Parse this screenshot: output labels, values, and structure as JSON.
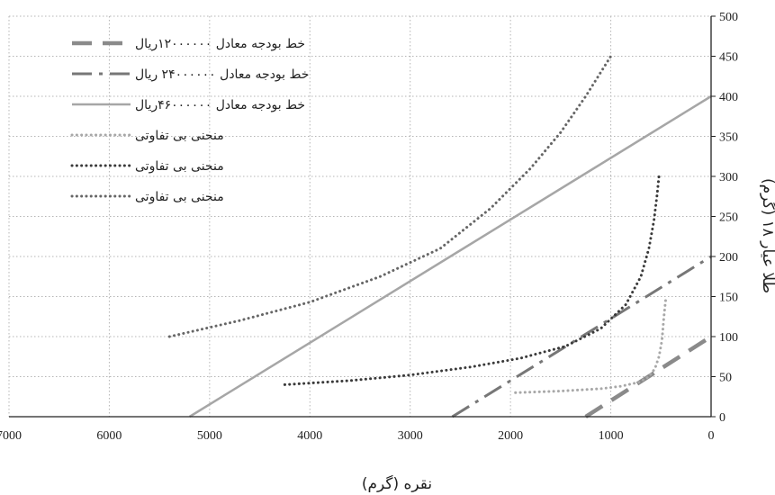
{
  "chart_data": {
    "type": "line",
    "xlabel": "نقره (گرم)",
    "ylabel": "طلا عیار ۱۸ (گرم)",
    "xlim": [
      7000,
      0
    ],
    "ylim": [
      0,
      500
    ],
    "x_reversed": true,
    "y_axis_side": "right",
    "grid": true,
    "legend_position": "top-left",
    "x_ticks": [
      "7000",
      "6000",
      "5000",
      "4000",
      "3000",
      "2000",
      "1000",
      "0"
    ],
    "y_ticks": [
      "0",
      "50",
      "100",
      "150",
      "200",
      "250",
      "300",
      "350",
      "400",
      "450",
      "500"
    ],
    "series": [
      {
        "name": "خط بودجه معادل ۱۲۰۰۰۰۰۰ریال",
        "style": "dashed-thick",
        "color": "#8a8a8a",
        "x": [
          1250,
          0
        ],
        "y": [
          0,
          100
        ]
      },
      {
        "name": "خط بودجه معادل ۲۴۰۰۰۰۰۰ ریال",
        "style": "dash-dot",
        "color": "#777777",
        "x": [
          2580,
          0
        ],
        "y": [
          0,
          200
        ]
      },
      {
        "name": "خط بودجه معادل ۴۶۰۰۰۰۰۰ریال",
        "style": "solid",
        "color": "#a6a6a6",
        "x": [
          5200,
          0
        ],
        "y": [
          0,
          400
        ]
      },
      {
        "name": "منحنی بی تفاوتی",
        "style": "dotted",
        "color": "#a8a8a8",
        "x": [
          1950,
          1500,
          1100,
          900,
          720,
          620,
          560,
          520,
          490,
          470,
          450
        ],
        "y": [
          30,
          32,
          35,
          38,
          43,
          50,
          60,
          75,
          95,
          125,
          150
        ]
      },
      {
        "name": "منحنی بی تفاوتی",
        "style": "dotted",
        "color": "#3a3a3a",
        "x": [
          4250,
          3600,
          3000,
          2400,
          1900,
          1450,
          1100,
          850,
          700,
          620,
          570,
          540,
          520
        ],
        "y": [
          40,
          45,
          52,
          62,
          73,
          88,
          110,
          140,
          175,
          210,
          245,
          275,
          300
        ]
      },
      {
        "name": "منحنی بی تفاوتی",
        "style": "dotted",
        "color": "#666666",
        "x": [
          5400,
          4700,
          4000,
          3300,
          2700,
          2200,
          1800,
          1500,
          1250,
          1100,
          1000
        ],
        "y": [
          100,
          120,
          143,
          175,
          210,
          260,
          310,
          355,
          400,
          430,
          450
        ]
      }
    ]
  }
}
